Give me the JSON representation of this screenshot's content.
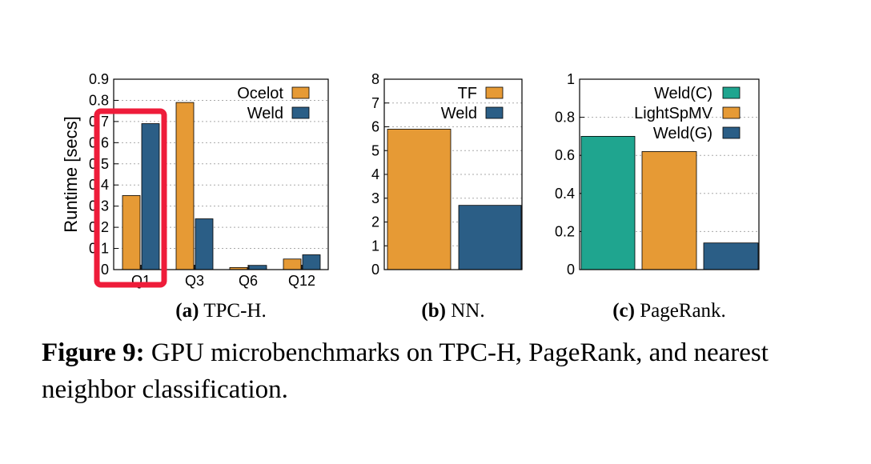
{
  "caption": {
    "label": "Figure 9:",
    "text": " GPU microbenchmarks on TPC-H, PageRank, and nearest neighbor classification."
  },
  "colors": {
    "orange": "#E69A35",
    "blue": "#2B5E86",
    "teal": "#1FA58F",
    "highlight": "#EE1C3A"
  },
  "chart_data": [
    {
      "type": "bar",
      "sublabel_letter": "(a)",
      "sublabel_text": "TPC-H.",
      "ylabel": "Runtime [secs]",
      "ylim": [
        0,
        0.9
      ],
      "yticks": [
        "0",
        "0.1",
        "0.2",
        "0.3",
        "0.4",
        "0.5",
        "0.6",
        "0.7",
        "0.8",
        "0.9"
      ],
      "categories": [
        "Q1",
        "Q3",
        "Q6",
        "Q12"
      ],
      "series": [
        {
          "name": "Ocelot",
          "color": "#E69A35",
          "values": [
            0.35,
            0.79,
            0.01,
            0.05
          ]
        },
        {
          "name": "Weld",
          "color": "#2B5E86",
          "values": [
            0.69,
            0.24,
            0.02,
            0.07
          ]
        }
      ],
      "legend": "top-right",
      "grid": "horizontal-dashed",
      "annotation": "red rectangle highlighting Q1"
    },
    {
      "type": "bar",
      "sublabel_letter": "(b)",
      "sublabel_text": "NN.",
      "ylim": [
        0,
        8
      ],
      "yticks": [
        "0",
        "1",
        "2",
        "3",
        "4",
        "5",
        "6",
        "7",
        "8"
      ],
      "categories": [
        ""
      ],
      "series": [
        {
          "name": "TF",
          "color": "#E69A35",
          "values": [
            5.9
          ]
        },
        {
          "name": "Weld",
          "color": "#2B5E86",
          "values": [
            2.7
          ]
        }
      ],
      "legend": "top-right",
      "grid": "horizontal-dashed"
    },
    {
      "type": "bar",
      "sublabel_letter": "(c)",
      "sublabel_text": "PageRank.",
      "ylim": [
        0,
        1
      ],
      "yticks": [
        "0",
        "0.2",
        "0.4",
        "0.6",
        "0.8",
        "1"
      ],
      "categories": [
        ""
      ],
      "series": [
        {
          "name": "Weld(C)",
          "color": "#1FA58F",
          "values": [
            0.7
          ]
        },
        {
          "name": "LightSpMV",
          "color": "#E69A35",
          "values": [
            0.62
          ]
        },
        {
          "name": "Weld(G)",
          "color": "#2B5E86",
          "values": [
            0.14
          ]
        }
      ],
      "legend": "top-right",
      "grid": "horizontal-dashed"
    }
  ]
}
